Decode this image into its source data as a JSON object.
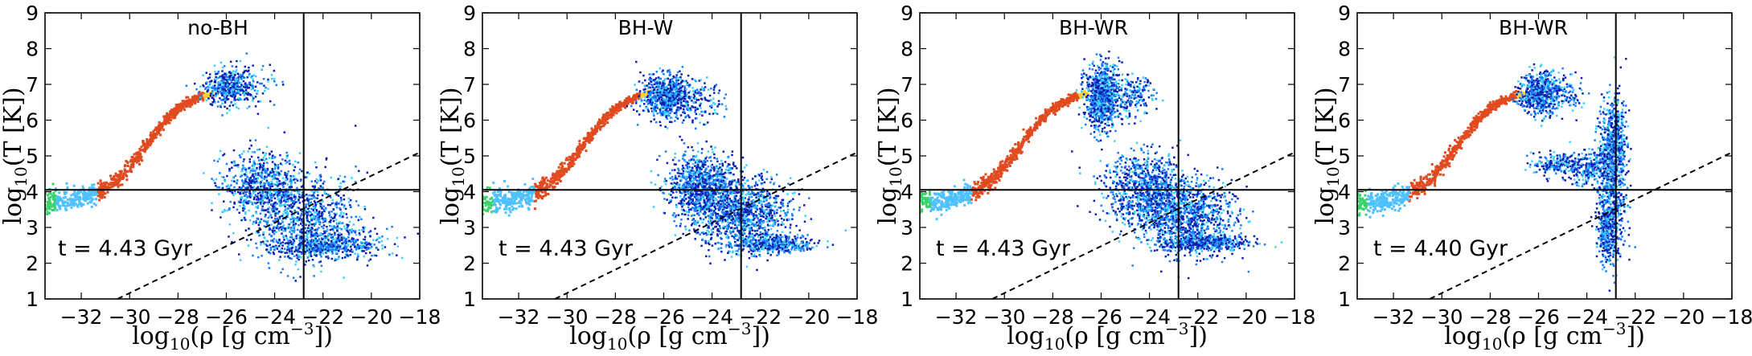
{
  "chart_data": [
    {
      "type": "scatter",
      "title": "no-BH",
      "annotation": "t = 4.43 Gyr",
      "xlabel": "log10(ρ [g cm^-3])",
      "ylabel": "log10(T [K])",
      "xlim": [
        -33.5,
        -18
      ],
      "ylim": [
        1,
        9
      ],
      "xticks": [
        "−32",
        "−30",
        "−28",
        "−26",
        "−24",
        "−22",
        "−20",
        "−18"
      ],
      "yticks": [
        "1",
        "2",
        "3",
        "4",
        "5",
        "6",
        "7",
        "8",
        "9"
      ],
      "reference_lines": {
        "vertical_x": -22.8,
        "horizontal_y": 4.05,
        "dashed_from": [
          -30.5,
          1.0
        ],
        "dashed_to": [
          -18,
          5.1
        ]
      },
      "blobs": [
        {
          "x": -26.0,
          "y": 6.95,
          "sx": 0.45,
          "sy": 0.25,
          "n": 420
        },
        {
          "x": -25.0,
          "y": 7.0,
          "sx": 0.5,
          "sy": 0.3,
          "n": 90
        },
        {
          "x": -24.6,
          "y": 4.2,
          "sx": 0.8,
          "sy": 0.45,
          "n": 650
        },
        {
          "x": -22.8,
          "y": 3.3,
          "sx": 1.1,
          "sy": 0.6,
          "n": 900
        },
        {
          "x": -22.2,
          "y": 2.5,
          "sx": 1.0,
          "sy": 0.15,
          "n": 400
        },
        {
          "x": -20.5,
          "y": 2.6,
          "sx": 1.0,
          "sy": 0.25,
          "n": 120
        }
      ]
    },
    {
      "type": "scatter",
      "title": "BH-W",
      "annotation": "t = 4.43 Gyr",
      "xlabel": "log10(ρ [g cm^-3])",
      "ylabel": "log10(T [K])",
      "xlim": [
        -33.5,
        -18
      ],
      "ylim": [
        1,
        9
      ],
      "xticks": [
        "−32",
        "−30",
        "−28",
        "−26",
        "−24",
        "−22",
        "−20",
        "−18"
      ],
      "yticks": [
        "1",
        "2",
        "3",
        "4",
        "5",
        "6",
        "7",
        "8",
        "9"
      ],
      "reference_lines": {
        "vertical_x": -22.8,
        "horizontal_y": 4.05,
        "dashed_from": [
          -30.5,
          1.0
        ],
        "dashed_to": [
          -18,
          5.1
        ]
      },
      "blobs": [
        {
          "x": -26.0,
          "y": 6.7,
          "sx": 0.5,
          "sy": 0.3,
          "n": 650
        },
        {
          "x": -24.8,
          "y": 6.6,
          "sx": 0.6,
          "sy": 0.3,
          "n": 180
        },
        {
          "x": -24.5,
          "y": 4.2,
          "sx": 0.7,
          "sy": 0.45,
          "n": 900
        },
        {
          "x": -22.8,
          "y": 3.4,
          "sx": 1.0,
          "sy": 0.5,
          "n": 1100
        },
        {
          "x": -21.5,
          "y": 2.55,
          "sx": 0.9,
          "sy": 0.12,
          "n": 400
        }
      ]
    },
    {
      "type": "scatter",
      "title": "BH-WR",
      "annotation": "t = 4.43 Gyr",
      "xlabel": "log10(ρ [g cm^-3])",
      "ylabel": "log10(T [K])",
      "xlim": [
        -33.5,
        -18
      ],
      "ylim": [
        1,
        9
      ],
      "xticks": [
        "−32",
        "−30",
        "−28",
        "−26",
        "−24",
        "−22",
        "−20",
        "−18"
      ],
      "yticks": [
        "1",
        "2",
        "3",
        "4",
        "5",
        "6",
        "7",
        "8",
        "9"
      ],
      "reference_lines": {
        "vertical_x": -22.8,
        "horizontal_y": 4.05,
        "dashed_from": [
          -30.5,
          1.0
        ],
        "dashed_to": [
          -18,
          5.1
        ]
      },
      "blobs": [
        {
          "x": -26.0,
          "y": 6.7,
          "sx": 0.35,
          "sy": 0.45,
          "n": 800
        },
        {
          "x": -24.8,
          "y": 6.7,
          "sx": 0.5,
          "sy": 0.3,
          "n": 200
        },
        {
          "x": -24.2,
          "y": 4.1,
          "sx": 0.9,
          "sy": 0.5,
          "n": 900
        },
        {
          "x": -22.5,
          "y": 3.3,
          "sx": 1.0,
          "sy": 0.5,
          "n": 1000
        },
        {
          "x": -21.8,
          "y": 2.6,
          "sx": 0.9,
          "sy": 0.12,
          "n": 450
        }
      ]
    },
    {
      "type": "scatter",
      "title": "BH-WR",
      "annotation": "t = 4.40 Gyr",
      "xlabel": "log10(ρ [g cm^-3])",
      "ylabel": "log10(T [K])",
      "xlim": [
        -33.5,
        -18
      ],
      "ylim": [
        1,
        9
      ],
      "xticks": [
        "−32",
        "−30",
        "−28",
        "−26",
        "−24",
        "−22",
        "−20",
        "−18"
      ],
      "yticks": [
        "1",
        "2",
        "3",
        "4",
        "5",
        "6",
        "7",
        "8",
        "9"
      ],
      "reference_lines": {
        "vertical_x": -22.8,
        "horizontal_y": 4.05,
        "dashed_from": [
          -30.5,
          1.0
        ],
        "dashed_to": [
          -18,
          5.1
        ]
      },
      "blobs": [
        {
          "x": -26.0,
          "y": 6.75,
          "sx": 0.4,
          "sy": 0.3,
          "n": 550
        },
        {
          "x": -25.0,
          "y": 6.8,
          "sx": 0.5,
          "sy": 0.3,
          "n": 120
        },
        {
          "x": -25.3,
          "y": 4.8,
          "sx": 0.5,
          "sy": 0.15,
          "n": 180
        },
        {
          "x": -23.0,
          "y": 4.2,
          "sx": 0.3,
          "sy": 1.0,
          "n": 700
        },
        {
          "x": -22.9,
          "y": 5.6,
          "sx": 0.25,
          "sy": 0.5,
          "n": 300
        },
        {
          "x": -23.2,
          "y": 3.0,
          "sx": 0.2,
          "sy": 0.4,
          "n": 250
        },
        {
          "x": -24.0,
          "y": 4.7,
          "sx": 0.5,
          "sy": 0.25,
          "n": 250
        }
      ]
    }
  ]
}
